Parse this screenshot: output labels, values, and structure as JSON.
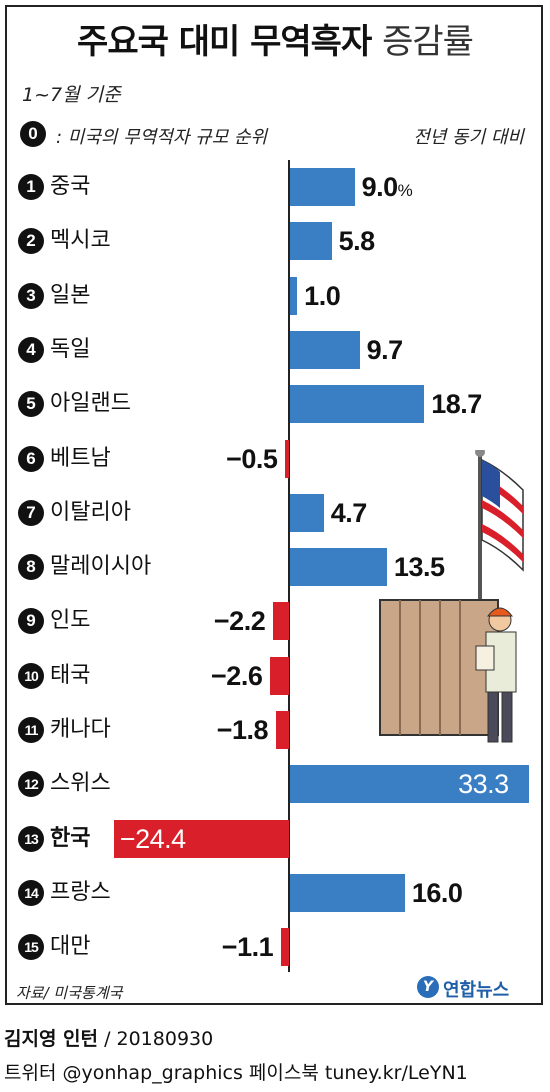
{
  "title": {
    "main": "주요국 대미 무역흑자",
    "sub": "증감률"
  },
  "period": "1~7월 기준",
  "legend": {
    "badge": "0",
    "text": ": 미국의 무역적자 규모 순위",
    "right": "전년 동기 대비"
  },
  "source": "자료/ 미국통계국",
  "logo": {
    "mark": "Y",
    "text": "연합뉴스"
  },
  "credit": {
    "author": "김지영 인턴",
    "date": "/ 20180930"
  },
  "sns": "트위터 @yonhap_graphics  페이스북 tuney.kr/LeYN1",
  "colors": {
    "positive": "#3a7fc4",
    "negative": "#d9202a",
    "highlight_bg": "#d9202a"
  },
  "illustration": {
    "icon": "us-flag-worker-cargo-icon"
  },
  "chart_data": {
    "type": "bar",
    "orientation": "horizontal",
    "value_unit": "%",
    "categories": [
      "중국",
      "멕시코",
      "일본",
      "독일",
      "아일랜드",
      "베트남",
      "이탈리아",
      "말레이시아",
      "인도",
      "태국",
      "캐나다",
      "스위스",
      "한국",
      "프랑스",
      "대만"
    ],
    "ranks": [
      "1",
      "2",
      "3",
      "4",
      "5",
      "6",
      "7",
      "8",
      "9",
      "10",
      "11",
      "12",
      "13",
      "14",
      "15"
    ],
    "values": [
      9.0,
      5.8,
      1.0,
      9.7,
      18.7,
      -0.5,
      4.7,
      13.5,
      -2.2,
      -2.6,
      -1.8,
      33.3,
      -24.4,
      16.0,
      -1.1
    ],
    "labels": [
      "9.0",
      "5.8",
      "1.0",
      "9.7",
      "18.7",
      "−0.5",
      "4.7",
      "13.5",
      "−2.2",
      "−2.6",
      "−1.8",
      "33.3",
      "−24.4",
      "16.0",
      "−1.1"
    ],
    "highlight": "한국"
  }
}
